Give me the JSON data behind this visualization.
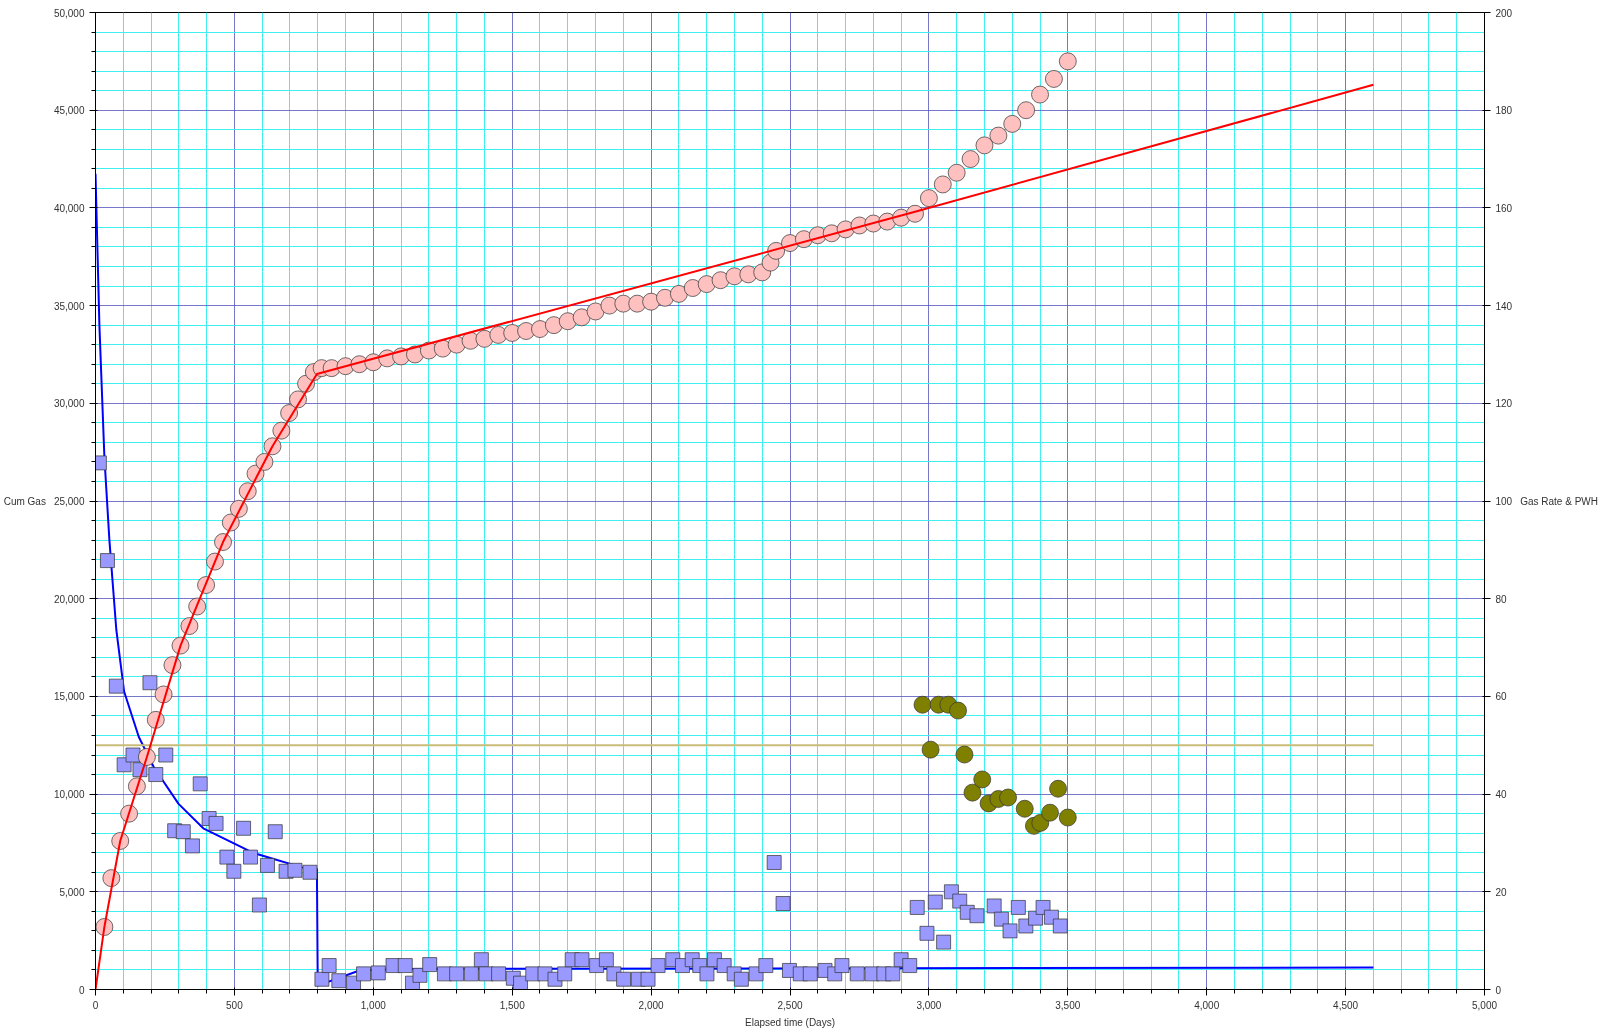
{
  "chart_data": {
    "type": "scatter",
    "xlabel": "Elapsed time (Days)",
    "ylabel": "Cum Gas",
    "y2label": "Gas Rate & PWH",
    "xlim": [
      0,
      5000
    ],
    "ylim": [
      0,
      50000
    ],
    "y2lim": [
      0,
      200
    ],
    "xticks": [
      0,
      {
        "value": 100,
        "label": null
      },
      {
        "value": 200,
        "label": null
      },
      {
        "value": 300,
        "label": null
      },
      {
        "value": 400,
        "label": null
      },
      500,
      {
        "value": 600,
        "label": null
      },
      {
        "value": 700,
        "label": null
      },
      {
        "value": 800,
        "label": null
      },
      {
        "value": 900,
        "label": null
      },
      {
        "value": 1000,
        "label": "1,000"
      },
      {
        "value": 1100,
        "label": null
      },
      {
        "value": 1200,
        "label": null
      },
      {
        "value": 1300,
        "label": null
      },
      {
        "value": 1400,
        "label": null
      },
      {
        "value": 1500,
        "label": "1,500"
      },
      {
        "value": 1600,
        "label": null
      },
      {
        "value": 1700,
        "label": null
      },
      {
        "value": 1800,
        "label": null
      },
      {
        "value": 1900,
        "label": null
      },
      {
        "value": 2000,
        "label": "2,000"
      },
      {
        "value": 2100,
        "label": null
      },
      {
        "value": 2200,
        "label": null
      },
      {
        "value": 2300,
        "label": null
      },
      {
        "value": 2400,
        "label": null
      },
      {
        "value": 2500,
        "label": "2,500"
      },
      {
        "value": 2600,
        "label": null
      },
      {
        "value": 2700,
        "label": null
      },
      {
        "value": 2800,
        "label": null
      },
      {
        "value": 2900,
        "label": null
      },
      {
        "value": 3000,
        "label": "3,000"
      },
      {
        "value": 3100,
        "label": null
      },
      {
        "value": 3200,
        "label": null
      },
      {
        "value": 3300,
        "label": null
      },
      {
        "value": 3400,
        "label": null
      },
      {
        "value": 3500,
        "label": "3,500"
      },
      {
        "value": 3600,
        "label": null
      },
      {
        "value": 3700,
        "label": null
      },
      {
        "value": 3800,
        "label": null
      },
      {
        "value": 3900,
        "label": null
      },
      {
        "value": 4000,
        "label": "4,000"
      },
      {
        "value": 4100,
        "label": null
      },
      {
        "value": 4200,
        "label": null
      },
      {
        "value": 4300,
        "label": null
      },
      {
        "value": 4400,
        "label": null
      },
      {
        "value": 4500,
        "label": "4,500"
      },
      {
        "value": 4600,
        "label": null
      },
      {
        "value": 4700,
        "label": null
      },
      {
        "value": 4800,
        "label": null
      },
      {
        "value": 4900,
        "label": null
      },
      {
        "value": 5000,
        "label": "5,000"
      }
    ],
    "yticks": [
      0,
      {
        "value": 1000,
        "label": null
      },
      {
        "value": 2000,
        "label": null
      },
      {
        "value": 3000,
        "label": null
      },
      {
        "value": 4000,
        "label": null
      },
      {
        "value": 5000,
        "label": "5,000"
      },
      {
        "value": 6000,
        "label": null
      },
      {
        "value": 7000,
        "label": null
      },
      {
        "value": 8000,
        "label": null
      },
      {
        "value": 9000,
        "label": null
      },
      {
        "value": 10000,
        "label": "10,000"
      },
      {
        "value": 11000,
        "label": null
      },
      {
        "value": 12000,
        "label": null
      },
      {
        "value": 13000,
        "label": null
      },
      {
        "value": 14000,
        "label": null
      },
      {
        "value": 15000,
        "label": "15,000"
      },
      {
        "value": 16000,
        "label": null
      },
      {
        "value": 17000,
        "label": null
      },
      {
        "value": 18000,
        "label": null
      },
      {
        "value": 19000,
        "label": null
      },
      {
        "value": 20000,
        "label": "20,000"
      },
      {
        "value": 21000,
        "label": null
      },
      {
        "value": 22000,
        "label": null
      },
      {
        "value": 23000,
        "label": null
      },
      {
        "value": 24000,
        "label": null
      },
      {
        "value": 25000,
        "label": "25,000"
      },
      {
        "value": 26000,
        "label": null
      },
      {
        "value": 27000,
        "label": null
      },
      {
        "value": 28000,
        "label": null
      },
      {
        "value": 29000,
        "label": null
      },
      {
        "value": 30000,
        "label": "30,000"
      },
      {
        "value": 31000,
        "label": null
      },
      {
        "value": 32000,
        "label": null
      },
      {
        "value": 33000,
        "label": null
      },
      {
        "value": 34000,
        "label": null
      },
      {
        "value": 35000,
        "label": "35,000"
      },
      {
        "value": 36000,
        "label": null
      },
      {
        "value": 37000,
        "label": null
      },
      {
        "value": 38000,
        "label": null
      },
      {
        "value": 39000,
        "label": null
      },
      {
        "value": 40000,
        "label": "40,000"
      },
      {
        "value": 41000,
        "label": null
      },
      {
        "value": 42000,
        "label": null
      },
      {
        "value": 43000,
        "label": null
      },
      {
        "value": 44000,
        "label": null
      },
      {
        "value": 45000,
        "label": "45,000"
      },
      {
        "value": 46000,
        "label": null
      },
      {
        "value": 47000,
        "label": null
      },
      {
        "value": 48000,
        "label": null
      },
      {
        "value": 49000,
        "label": null
      },
      {
        "value": 50000,
        "label": "50,000"
      }
    ],
    "y2ticks": [
      0,
      20,
      40,
      60,
      80,
      100,
      120,
      140,
      160,
      180,
      200
    ],
    "grid": true,
    "series": [
      {
        "type": "line",
        "color": "#0000ff",
        "axis": "y2",
        "line_style": "solid",
        "x": [
          0,
          14,
          32,
          50,
          75,
          103,
          156,
          210,
          299,
          388,
          566,
          743,
          797,
          800,
          950,
          1100,
          4600
        ],
        "values": [
          167,
          136,
          109,
          92,
          73.6,
          61,
          51.7,
          45.5,
          38,
          33,
          28,
          25,
          24.6,
          0.8,
          3.9,
          4.2,
          4.5
        ]
      },
      {
        "type": "line",
        "color": "#c8bc78",
        "axis": "y2",
        "line_style": "solid",
        "x": [
          0,
          4600
        ],
        "values": [
          50,
          50
        ]
      },
      {
        "marker": "square",
        "color": "#9999ff",
        "axis": "y2",
        "x": [
          14,
          43,
          75,
          103,
          135,
          160,
          196,
          217,
          253,
          285,
          316,
          349,
          377,
          409,
          434,
          473,
          498,
          533,
          558,
          590,
          619,
          647,
          686,
          718,
          772,
          815,
          841,
          876,
          929,
          965,
          1018,
          1071,
          1115,
          1141,
          1168,
          1203,
          1256,
          1300,
          1353,
          1389,
          1406,
          1451,
          1504,
          1530,
          1574,
          1618,
          1654,
          1689,
          1716,
          1751,
          1804,
          1839,
          1866,
          1901,
          1954,
          1989,
          2025,
          2078,
          2113,
          2148,
          2175,
          2201,
          2228,
          2263,
          2299,
          2325,
          2378,
          2413,
          2443,
          2475,
          2498,
          2537,
          2573,
          2626,
          2661,
          2687,
          2742,
          2795,
          2838,
          2870,
          2900,
          2931,
          2958,
          2993,
          3023,
          3053,
          3081,
          3111,
          3138,
          3173,
          3235,
          3261,
          3292,
          3322,
          3349,
          3384,
          3411,
          3441,
          3473
        ],
        "values": [
          107.8,
          87.8,
          62.1,
          46,
          48,
          45,
          62.8,
          44,
          48,
          32.5,
          32.3,
          29.4,
          42.1,
          35,
          34,
          27.1,
          24.2,
          33,
          27.1,
          17.3,
          25.4,
          32.3,
          24.2,
          24.4,
          24,
          2.1,
          4.9,
          1.8,
          1.3,
          3.2,
          3.4,
          4.9,
          4.9,
          1.3,
          2.9,
          5.1,
          3.2,
          3.2,
          3.2,
          6.1,
          3.2,
          3.2,
          2.3,
          1.3,
          3.2,
          3.2,
          2.1,
          3.2,
          6.1,
          6.1,
          4.9,
          6.1,
          3.2,
          2.1,
          2.1,
          2.1,
          4.9,
          6.1,
          4.9,
          6.1,
          4.9,
          3.2,
          6.1,
          4.9,
          3.2,
          2.1,
          3.2,
          4.9,
          26,
          17.6,
          3.9,
          3.2,
          3.2,
          3.9,
          3.2,
          4.9,
          3.2,
          3.2,
          3.2,
          3.2,
          6.1,
          4.9,
          16.8,
          11.5,
          17.9,
          9.7,
          20,
          18.1,
          15.8,
          15.1,
          17.1,
          14.4,
          12,
          16.8,
          13,
          14.6,
          16.8,
          14.8,
          13
        ]
      },
      {
        "marker": "circle",
        "color": "#808000",
        "axis": "y2",
        "x": [
          2977,
          3006,
          3035,
          3070,
          3105,
          3128,
          3157,
          3192,
          3215,
          3250,
          3285,
          3345,
          3378,
          3401,
          3436,
          3465,
          3500
        ],
        "values": [
          58.3,
          49.1,
          58.3,
          58.3,
          57.1,
          48.1,
          40.3,
          43,
          38.1,
          39,
          39.3,
          37,
          33.5,
          34.1,
          36.2,
          41.1,
          35.2
        ]
      },
      {
        "marker": "circle",
        "color": "#ffc0c0",
        "x": [
          32,
          57,
          89,
          121,
          149,
          185,
          217,
          245,
          277,
          306,
          338,
          366,
          398,
          430,
          459,
          487,
          516,
          548,
          576,
          608,
          637,
          669,
          697,
          729,
          758,
          786,
          814,
          850,
          900,
          950,
          1000,
          1050,
          1100,
          1150,
          1200,
          1250,
          1300,
          1350,
          1400,
          1450,
          1500,
          1550,
          1600,
          1650,
          1700,
          1750,
          1800,
          1850,
          1900,
          1950,
          2000,
          2050,
          2100,
          2150,
          2200,
          2250,
          2300,
          2350,
          2400,
          2430,
          2450,
          2500,
          2550,
          2600,
          2650,
          2700,
          2750,
          2800,
          2850,
          2900,
          2950,
          3000,
          3050,
          3100,
          3150,
          3200,
          3250,
          3300,
          3350,
          3400,
          3450,
          3500
        ],
        "values": [
          3200,
          5700,
          7600,
          9000,
          10400,
          11900,
          13800,
          15100,
          16600,
          17600,
          18600,
          19600,
          20700,
          21900,
          22900,
          23900,
          24600,
          25500,
          26400,
          27000,
          27800,
          28600,
          29500,
          30200,
          31000,
          31600,
          31800,
          31800,
          31900,
          32000,
          32100,
          32300,
          32400,
          32500,
          32700,
          32800,
          33000,
          33200,
          33300,
          33500,
          33600,
          33700,
          33800,
          34000,
          34200,
          34400,
          34700,
          35000,
          35100,
          35100,
          35200,
          35400,
          35600,
          35900,
          36100,
          36300,
          36500,
          36600,
          36700,
          37200,
          37800,
          38200,
          38400,
          38600,
          38700,
          38900,
          39100,
          39200,
          39300,
          39500,
          39700,
          40500,
          41200,
          41800,
          42500,
          43200,
          43700,
          44300,
          45000,
          45800,
          46600,
          47500
        ]
      },
      {
        "type": "line",
        "color": "#ff0000",
        "line_style": "solid",
        "x": [
          0,
          32,
          89,
          185,
          306,
          459,
          637,
          797,
          2950,
          4600
        ],
        "values": [
          0,
          3200,
          7600,
          11900,
          17600,
          22900,
          27800,
          31500,
          39800,
          46300
        ]
      }
    ]
  }
}
